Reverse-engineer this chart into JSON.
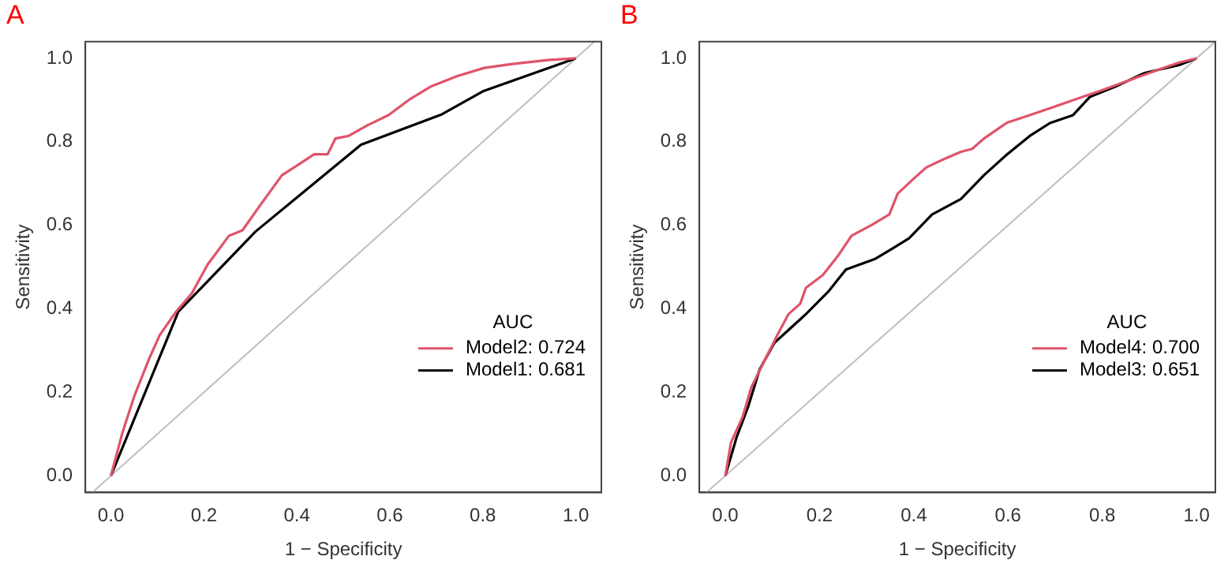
{
  "chart_data": [
    {
      "type": "line",
      "title": "A",
      "xlabel": "1 − Specificity",
      "ylabel": "Sensitivity",
      "legend_title": "AUC",
      "legend": "right",
      "xlim": [
        -0.055,
        1.055
      ],
      "ylim": [
        -0.04,
        1.04
      ],
      "xticks": [
        {
          "value": 0,
          "label": "0.0"
        },
        {
          "value": 0.2,
          "label": "0.2"
        },
        {
          "value": 0.4,
          "label": "0.4"
        },
        {
          "value": 0.6,
          "label": "0.6"
        },
        {
          "value": 0.8,
          "label": "0.8"
        },
        {
          "value": 1,
          "label": "1.0"
        }
      ],
      "yticks": [
        {
          "value": 0,
          "label": "0.0"
        },
        {
          "value": 0.2,
          "label": "0.2"
        },
        {
          "value": 0.4,
          "label": "0.4"
        },
        {
          "value": 0.6,
          "label": "0.6"
        },
        {
          "value": 0.8,
          "label": "0.8"
        },
        {
          "value": 1,
          "label": "1.0"
        }
      ],
      "series": [
        {
          "name": "Model2: 0.724",
          "color": "#df536b",
          "x": [
            0,
            0.025,
            0.05,
            0.082,
            0.105,
            0.14,
            0.174,
            0.208,
            0.254,
            0.283,
            0.323,
            0.368,
            0.403,
            0.437,
            0.466,
            0.483,
            0.511,
            0.551,
            0.597,
            0.643,
            0.689,
            0.746,
            0.803,
            0.86,
            0.94,
            1
          ],
          "values": [
            0,
            0.104,
            0.19,
            0.28,
            0.337,
            0.393,
            0.437,
            0.506,
            0.575,
            0.588,
            0.651,
            0.72,
            0.745,
            0.77,
            0.77,
            0.808,
            0.814,
            0.839,
            0.864,
            0.902,
            0.933,
            0.958,
            0.977,
            0.986,
            0.996,
            1
          ]
        },
        {
          "name": "Model1: 0.681",
          "color": "#000000",
          "x": [
            0,
            0.145,
            0.311,
            0.538,
            0.712,
            0.8,
            1
          ],
          "values": [
            0,
            0.393,
            0.585,
            0.793,
            0.866,
            0.921,
            1
          ]
        },
        {
          "color": "#bebebe",
          "x": [
            -0.04,
            1.04
          ],
          "values": [
            -0.04,
            1.04
          ]
        }
      ]
    },
    {
      "type": "line",
      "title": "B",
      "xlabel": "1 − Specificity",
      "ylabel": "Sensitivity",
      "legend_title": "AUC",
      "legend": "right",
      "xlim": [
        -0.055,
        1.04
      ],
      "ylim": [
        -0.04,
        1.04
      ],
      "xticks": [
        {
          "value": 0,
          "label": "0.0"
        },
        {
          "value": 0.2,
          "label": "0.2"
        },
        {
          "value": 0.4,
          "label": "0.4"
        },
        {
          "value": 0.6,
          "label": "0.6"
        },
        {
          "value": 0.8,
          "label": "0.8"
        },
        {
          "value": 1,
          "label": "1.0"
        }
      ],
      "yticks": [
        {
          "value": 0,
          "label": "0.0"
        },
        {
          "value": 0.2,
          "label": "0.2"
        },
        {
          "value": 0.4,
          "label": "0.4"
        },
        {
          "value": 0.6,
          "label": "0.6"
        },
        {
          "value": 0.8,
          "label": "0.8"
        },
        {
          "value": 1,
          "label": "1.0"
        }
      ],
      "series": [
        {
          "name": "Model4: 0.700",
          "color": "#df536b",
          "x": [
            0,
            0.012,
            0.037,
            0.055,
            0.085,
            0.116,
            0.134,
            0.159,
            0.171,
            0.207,
            0.238,
            0.268,
            0.311,
            0.348,
            0.366,
            0.402,
            0.427,
            0.463,
            0.5,
            0.524,
            0.549,
            0.598,
            0.646,
            0.695,
            0.744,
            0.793,
            0.854,
            0.915,
            0.963,
            1
          ],
          "values": [
            0,
            0.079,
            0.142,
            0.211,
            0.28,
            0.349,
            0.387,
            0.412,
            0.45,
            0.481,
            0.525,
            0.575,
            0.601,
            0.626,
            0.676,
            0.714,
            0.739,
            0.758,
            0.776,
            0.783,
            0.808,
            0.846,
            0.864,
            0.883,
            0.902,
            0.921,
            0.946,
            0.971,
            0.99,
            1
          ]
        },
        {
          "name": "Model3: 0.651",
          "color": "#000000",
          "x": [
            0,
            0.024,
            0.049,
            0.073,
            0.104,
            0.134,
            0.171,
            0.22,
            0.256,
            0.317,
            0.354,
            0.39,
            0.439,
            0.5,
            0.549,
            0.598,
            0.646,
            0.689,
            0.738,
            0.774,
            0.829,
            0.89,
            0.963,
            1
          ],
          "values": [
            0,
            0.092,
            0.167,
            0.255,
            0.318,
            0.349,
            0.387,
            0.443,
            0.494,
            0.519,
            0.544,
            0.569,
            0.626,
            0.663,
            0.72,
            0.77,
            0.814,
            0.845,
            0.864,
            0.908,
            0.933,
            0.965,
            0.984,
            1
          ]
        },
        {
          "color": "#bebebe",
          "x": [
            -0.04,
            1.04
          ],
          "values": [
            -0.04,
            1.04
          ]
        }
      ]
    }
  ]
}
